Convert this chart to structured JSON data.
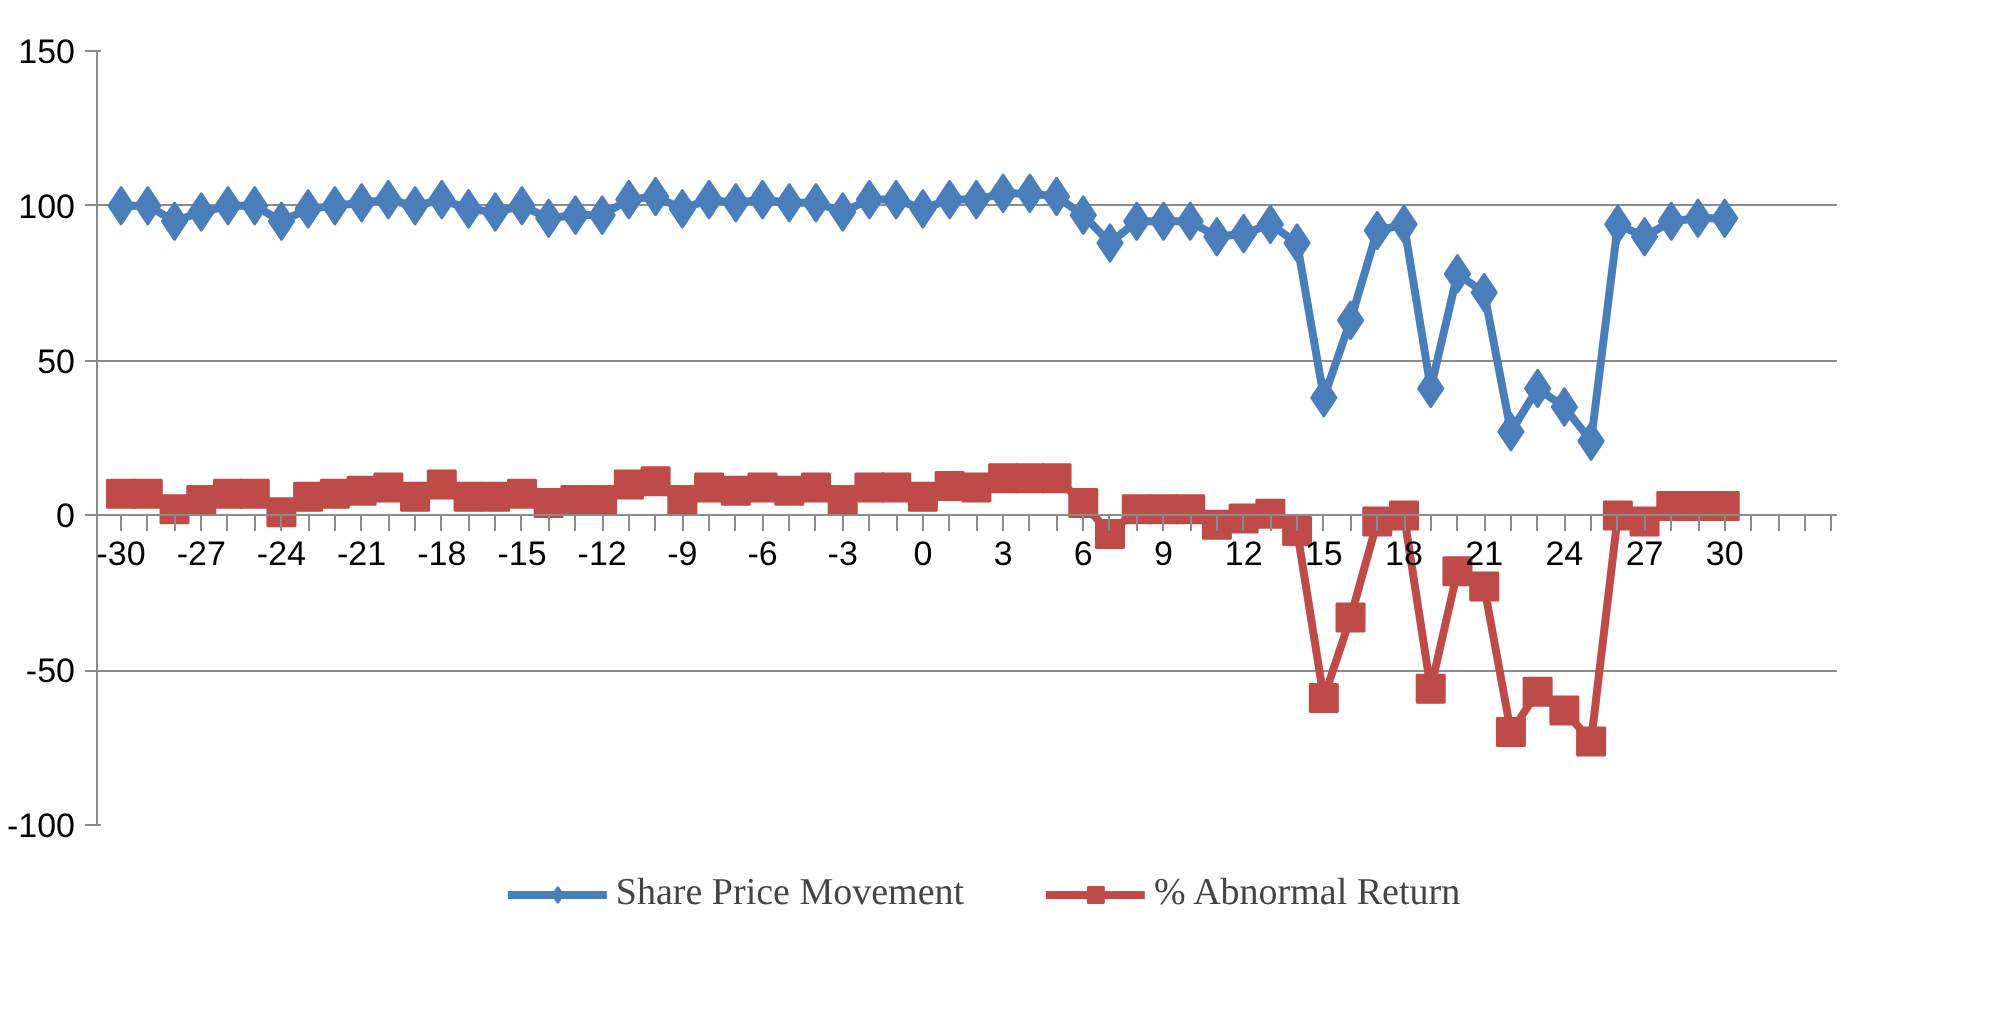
{
  "chart_data": {
    "type": "line",
    "categories": [
      "-30",
      null,
      null,
      "-27",
      null,
      null,
      "-24",
      null,
      null,
      "-21",
      null,
      null,
      "-18",
      null,
      null,
      "-15",
      null,
      null,
      "-12",
      null,
      null,
      "-9",
      null,
      null,
      "-6",
      null,
      null,
      "-3",
      null,
      null,
      "0",
      null,
      null,
      "3",
      null,
      null,
      "6",
      null,
      null,
      "9",
      null,
      null,
      "12",
      null,
      null,
      "15",
      null,
      null,
      "18",
      null,
      null,
      "21",
      null,
      null,
      "24",
      null,
      null,
      "27",
      null,
      null,
      "30",
      null,
      null,
      null,
      null
    ],
    "series": [
      {
        "name": "Share Price Movement",
        "color": "#4a7ebb",
        "marker": "diamond",
        "values": [
          100,
          100,
          95,
          98,
          100,
          100,
          95,
          99,
          100,
          101,
          102,
          100,
          102,
          99,
          98,
          100,
          96,
          97,
          97,
          102,
          103,
          99,
          102,
          101,
          102,
          101,
          101,
          98,
          102,
          102,
          99,
          102,
          102,
          104,
          104,
          103,
          97,
          88,
          95,
          95,
          95,
          90,
          91,
          94,
          88,
          38,
          63,
          92,
          94,
          41,
          78,
          72,
          27,
          41,
          35,
          24,
          94,
          90,
          95,
          96,
          96,
          null,
          null,
          null,
          null
        ]
      },
      {
        "name": "% Abnormal Return",
        "color": "#be4b48",
        "marker": "square",
        "values": [
          7,
          7,
          2,
          5,
          7,
          7,
          1,
          6,
          7,
          8,
          9,
          6,
          10,
          6,
          6,
          7,
          4,
          5,
          5,
          10,
          11,
          5,
          9,
          8,
          9,
          8,
          9,
          5,
          9,
          9,
          6,
          9.5,
          9,
          12,
          12,
          12,
          4,
          -6,
          2,
          2,
          2,
          -3,
          -1,
          0.5,
          -5,
          -59,
          -33,
          -2,
          0,
          -56,
          -18,
          -23,
          -70,
          -57,
          -63,
          -73,
          0,
          -2,
          3,
          3,
          3,
          null,
          null,
          null,
          null
        ]
      }
    ],
    "ylim": [
      -100,
      150
    ],
    "yticks": [
      -100,
      -50,
      0,
      50,
      100,
      150
    ],
    "grid": "y",
    "legend": "bottom",
    "line_style": "solid"
  }
}
